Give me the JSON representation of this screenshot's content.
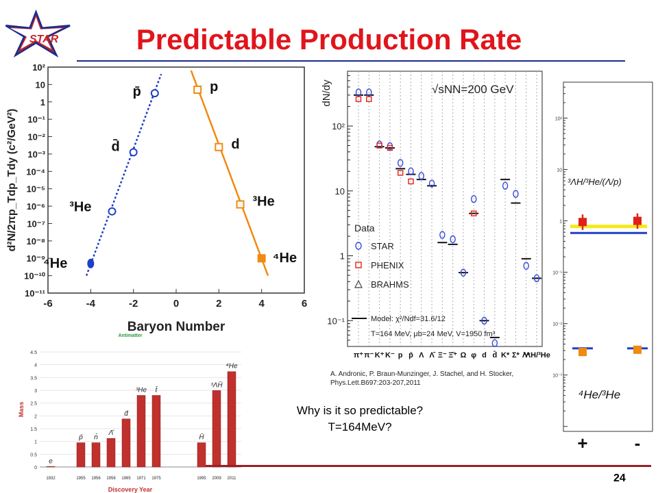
{
  "slide": {
    "title": "Predictable Production Rate",
    "logo_text": "STAR",
    "page_number": "24",
    "question_line1": "Why is it so predictable?",
    "question_line2": "T=164MeV?",
    "citation_line1": "A. Andronic, P. Braun-Munzinger, J. Stachel, and H. Stocker,",
    "citation_line2": "Phys.Lett.B697:203-207,2011",
    "colors": {
      "title": "#e0151b",
      "rule": "#1b2a8a",
      "bottom_rule": "#9b1d25"
    }
  },
  "chart_data": [
    {
      "id": "yield-vs-baryon-number",
      "type": "scatter",
      "xlabel": "Baryon Number",
      "ylabel": "d²N/2πp_Tdp_Tdy (c²/GeV²)",
      "xlim": [
        -6,
        6
      ],
      "xticks": [
        "-6",
        "-4",
        "-2",
        "0",
        "2",
        "4",
        "6"
      ],
      "ylog": true,
      "ylim_exp": [
        -11,
        2
      ],
      "series": [
        {
          "color": "#1f3fc4",
          "points": [
            {
              "x": -1,
              "y_exp": 0.5,
              "label": "p̄",
              "marker": "open-circle"
            },
            {
              "x": -2,
              "y_exp": -2.9,
              "label": "d̄",
              "marker": "open-circle"
            },
            {
              "x": -3,
              "y_exp": -6.3,
              "label": "³He",
              "marker": "open-circle"
            },
            {
              "x": -4,
              "y_exp": -9.3,
              "label": "⁴He",
              "marker": "filled-circle"
            }
          ],
          "fit": [
            [
              -4.2,
              -10.0
            ],
            [
              -0.7,
              1.6
            ]
          ]
        },
        {
          "color": "#f08a10",
          "points": [
            {
              "x": 1,
              "y_exp": 0.7,
              "label": "p",
              "marker": "open-square"
            },
            {
              "x": 2,
              "y_exp": -2.6,
              "label": "d",
              "marker": "open-square"
            },
            {
              "x": 3,
              "y_exp": -5.9,
              "label": "³He",
              "marker": "open-square"
            },
            {
              "x": 4,
              "y_exp": -9.0,
              "label": "⁴He",
              "marker": "filled-square"
            }
          ],
          "fit": [
            [
              0.7,
              1.8
            ],
            [
              4.3,
              -10.0
            ]
          ]
        }
      ]
    },
    {
      "id": "particle-yields-dNdy",
      "type": "scatter",
      "ylabel": "dN/dy",
      "energy_label": "√sNN=200 GeV",
      "ylog": true,
      "ylim": [
        0.04,
        700
      ],
      "yticks": [
        "10⁻¹",
        "1",
        "10",
        "10²"
      ],
      "categories": [
        "π⁺",
        "π⁻",
        "K⁺",
        "K⁻",
        "p",
        "p̄",
        "Λ",
        "Λ̄",
        "Ξ⁻",
        "Ξ̄⁺",
        "Ω",
        "φ",
        "d",
        "d̄",
        "K*",
        "Σ*",
        "Λ*",
        "³ΛH/³He"
      ],
      "legend_title": "Data",
      "legend": [
        "STAR",
        "PHENIX",
        "BRAHMS"
      ],
      "model_label": "Model: χ²/Ndf=31.6/12",
      "model_params": "T=164 MeV, μb=24 MeV, V=1950 fm³",
      "model_values": [
        300,
        300,
        48,
        46,
        22,
        18,
        15,
        12,
        1.6,
        1.5,
        0.55,
        4.5,
        0.1,
        0.055,
        15,
        6.5,
        0.9,
        0.45
      ],
      "star_values": [
        330,
        330,
        52,
        49,
        27,
        20,
        17,
        13,
        2.1,
        1.8,
        0.55,
        7.5,
        0.1,
        0.045,
        12,
        9,
        0.7,
        0.45
      ],
      "phenix_values": [
        260,
        260,
        50,
        46,
        19,
        14,
        null,
        null,
        null,
        null,
        null,
        4.5,
        null,
        null,
        null,
        null,
        null,
        null
      ]
    },
    {
      "id": "ratio-plot",
      "type": "scatter",
      "ylog": true,
      "ylim": [
        8e-05,
        500
      ],
      "yticks": [
        "10⁻³",
        "10⁻²",
        "10⁻¹",
        "1",
        "10",
        "10²"
      ],
      "categories": [
        "+",
        "-"
      ],
      "series": [
        {
          "name_text": "³ΛH/³He/(Λ/p)",
          "color": "#e0211b",
          "values": [
            0.95,
            1.0
          ]
        },
        {
          "name_text": "⁴He/³He",
          "color": "#f08a10",
          "values": [
            0.0028,
            0.0031
          ]
        }
      ]
    },
    {
      "id": "antimatter-discovery",
      "type": "bar",
      "title": "Antimatter",
      "xlabel": "Discovery Year",
      "ylabel": "Mass",
      "ylim": [
        0,
        4.5
      ],
      "yticks": [
        "0",
        "0.5",
        "1",
        "1.5",
        "2",
        "2.5",
        "3",
        "3.5",
        "4",
        "4.5"
      ],
      "categories": [
        "1932",
        "1955",
        "1956",
        "1958",
        "1965",
        "1971",
        "1975",
        "1995",
        "2009",
        "2011"
      ],
      "values": [
        0.02,
        0.95,
        0.95,
        1.12,
        1.88,
        2.8,
        2.8,
        0.95,
        2.99,
        3.73
      ],
      "bar_labels": [
        "e",
        "p̄",
        "n̄",
        "Λ̄",
        "d̄",
        "³He",
        "t̄",
        "H̄",
        "³ΛH̄",
        "⁴He"
      ],
      "bar_color": "#c0302c"
    }
  ]
}
